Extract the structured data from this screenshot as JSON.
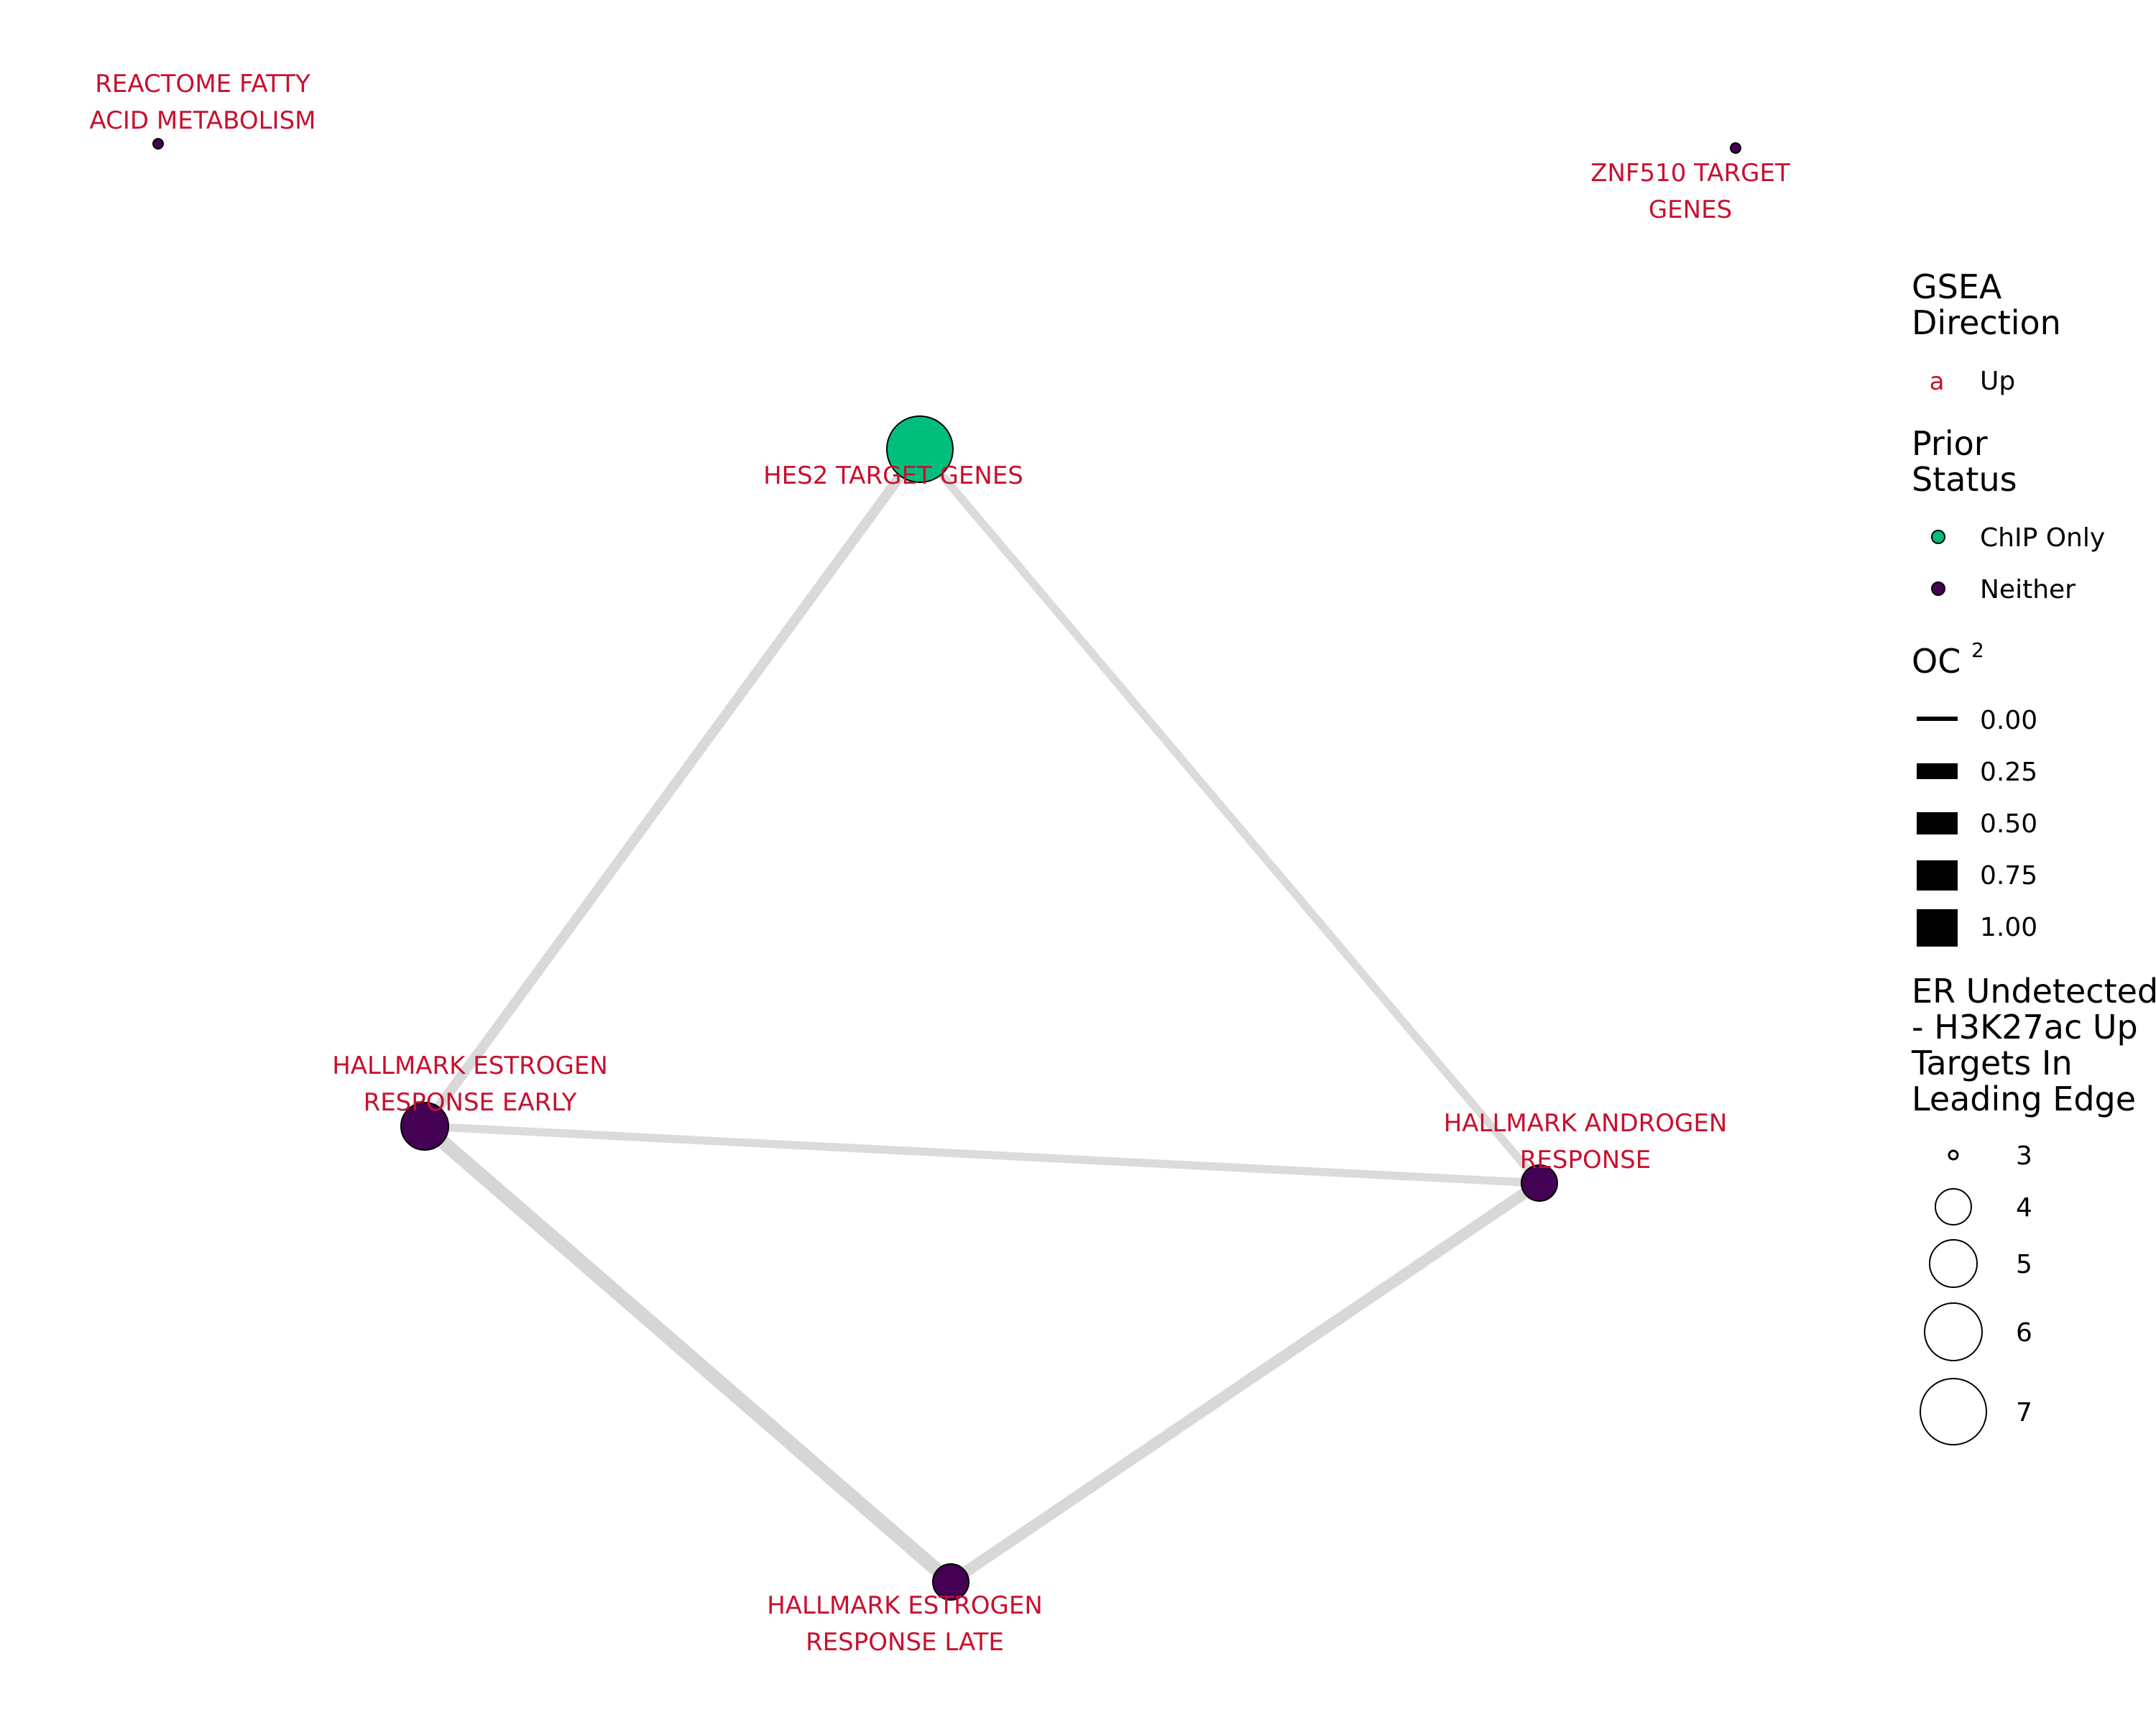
{
  "network": {
    "nodes": [
      {
        "id": "reactome",
        "label_lines": [
          "REACTOME FATTY",
          "ACID METABOLISM"
        ],
        "prior_status": "Neither",
        "leading_edge": 1
      },
      {
        "id": "znf510",
        "label_lines": [
          "ZNF510 TARGET",
          "GENES"
        ],
        "prior_status": "Neither",
        "leading_edge": 1
      },
      {
        "id": "hes2",
        "label_lines": [
          "HES2 TARGET GENES"
        ],
        "prior_status": "ChIP Only",
        "leading_edge": 7
      },
      {
        "id": "estrogen_early",
        "label_lines": [
          "HALLMARK ESTROGEN",
          "RESPONSE EARLY"
        ],
        "prior_status": "Neither",
        "leading_edge": 5
      },
      {
        "id": "androgen",
        "label_lines": [
          "HALLMARK ANDROGEN",
          "RESPONSE"
        ],
        "prior_status": "Neither",
        "leading_edge": 4
      },
      {
        "id": "estrogen_late",
        "label_lines": [
          "HALLMARK ESTROGEN",
          "RESPONSE LATE"
        ],
        "prior_status": "Neither",
        "leading_edge": 4
      }
    ],
    "edges": [
      {
        "source": "hes2",
        "target": "estrogen_early",
        "oc2": 0.45
      },
      {
        "source": "hes2",
        "target": "androgen",
        "oc2": 0.3
      },
      {
        "source": "estrogen_early",
        "target": "androgen",
        "oc2": 0.3
      },
      {
        "source": "estrogen_early",
        "target": "estrogen_late",
        "oc2": 0.75
      },
      {
        "source": "androgen",
        "target": "estrogen_late",
        "oc2": 0.55
      }
    ]
  },
  "legend": {
    "gsea_direction": {
      "title_lines": [
        "GSEA",
        "Direction"
      ],
      "key_glyph": "a",
      "entries": [
        "Up"
      ]
    },
    "prior_status": {
      "title_lines": [
        "Prior",
        "Status"
      ],
      "entries": [
        {
          "label": "ChIP Only",
          "color": "#00bf7d"
        },
        {
          "label": "Neither",
          "color": "#440154"
        }
      ]
    },
    "oc2": {
      "title": "OC",
      "title_sup": "2",
      "entries": [
        "0.00",
        "0.25",
        "0.50",
        "0.75",
        "1.00"
      ]
    },
    "leading_edge": {
      "title_lines": [
        "ER Undetected",
        "- H3K27ac Up",
        "Targets In",
        "Leading Edge"
      ],
      "entries": [
        "3",
        "4",
        "5",
        "6",
        "7"
      ]
    }
  },
  "colors": {
    "label": "#c8102e",
    "edge": "#d3d3d3",
    "chip_only": "#00bf7d",
    "neither": "#440154"
  }
}
